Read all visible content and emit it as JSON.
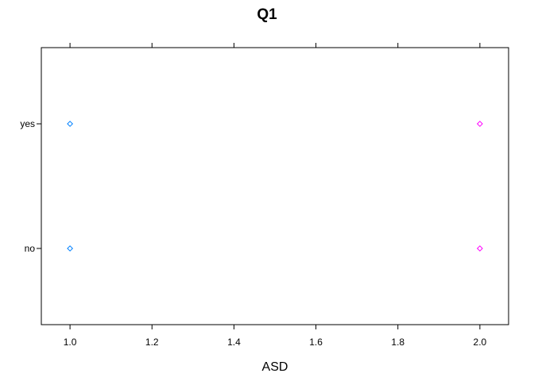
{
  "chart_data": {
    "type": "scatter",
    "title": "Q1",
    "xlabel": "ASD",
    "ylabel": "",
    "xlim": [
      0.93,
      2.07
    ],
    "x_ticks": [
      "1.0",
      "1.2",
      "1.4",
      "1.6",
      "1.8",
      "2.0"
    ],
    "y_categories": [
      "no",
      "yes"
    ],
    "grid": false,
    "marker": "diamond",
    "points": [
      {
        "x": 1.0,
        "y": "yes",
        "color": "#0080ff"
      },
      {
        "x": 1.0,
        "y": "no",
        "color": "#0080ff"
      },
      {
        "x": 2.0,
        "y": "yes",
        "color": "#ff00ff"
      },
      {
        "x": 2.0,
        "y": "no",
        "color": "#ff00ff"
      }
    ]
  }
}
